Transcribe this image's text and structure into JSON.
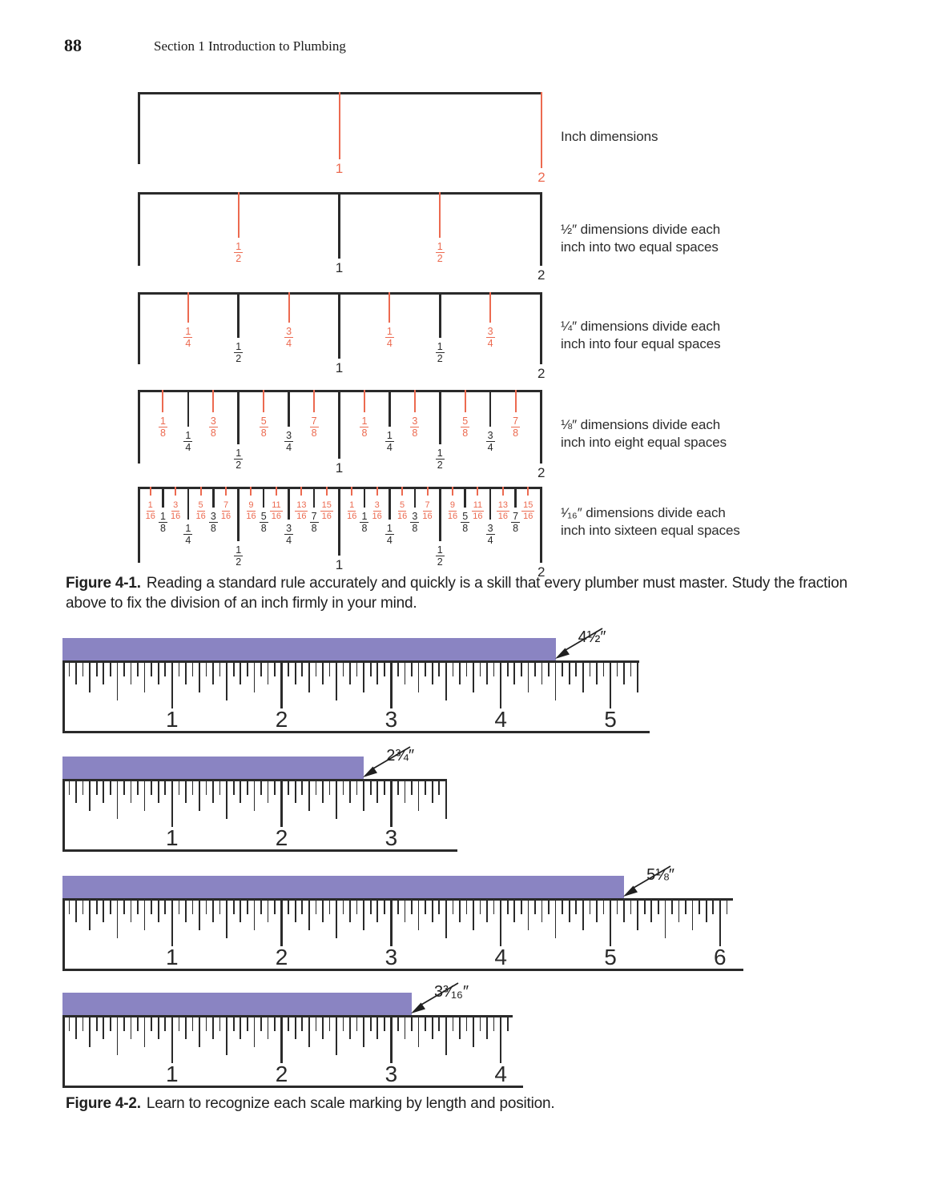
{
  "page": {
    "number": "88",
    "header": "Section 1   Introduction to Plumbing"
  },
  "colors": {
    "highlight_red": "#ec6a50",
    "ink": "#2a2a2a",
    "bar_purple": "#8a84c2"
  },
  "figure1": {
    "caption_label": "Figure  4-1.",
    "caption_text": "Reading a standard rule accurately and quickly is a skill that every plumber must master. Study the fraction above to fix the division of an inch firmly in your mind.",
    "diagrams": [
      {
        "name": "inch-dimensions",
        "note": "Inch dimensions",
        "marks": [
          {
            "p": 0,
            "lv": "edge",
            "c": "k"
          },
          {
            "p": 1,
            "lv": "one",
            "c": "r",
            "t": "1"
          },
          {
            "p": 2,
            "lv": "two",
            "c": "r",
            "t": "2"
          }
        ]
      },
      {
        "name": "half-inch-dimensions",
        "note": "½″ dimensions divide each\ninch into two equal spaces",
        "marks": [
          {
            "p": 0,
            "lv": "edge",
            "c": "k"
          },
          {
            "p": 0.5,
            "lv": "h",
            "c": "r",
            "t": "1/2"
          },
          {
            "p": 1,
            "lv": "one",
            "c": "k",
            "t": "1"
          },
          {
            "p": 1.5,
            "lv": "h",
            "c": "r",
            "t": "1/2"
          },
          {
            "p": 2,
            "lv": "two",
            "c": "k",
            "t": "2"
          }
        ]
      },
      {
        "name": "quarter-inch-dimensions",
        "note": "¼″ dimensions divide each\ninch into four equal spaces",
        "marks": [
          {
            "p": 0,
            "lv": "edge",
            "c": "k"
          },
          {
            "p": 0.25,
            "lv": "q",
            "c": "r",
            "t": "1/4"
          },
          {
            "p": 0.5,
            "lv": "h",
            "c": "k",
            "t": "1/2"
          },
          {
            "p": 0.75,
            "lv": "q",
            "c": "r",
            "t": "3/4"
          },
          {
            "p": 1,
            "lv": "one",
            "c": "k",
            "t": "1"
          },
          {
            "p": 1.25,
            "lv": "q",
            "c": "r",
            "t": "1/4"
          },
          {
            "p": 1.5,
            "lv": "h",
            "c": "k",
            "t": "1/2"
          },
          {
            "p": 1.75,
            "lv": "q",
            "c": "r",
            "t": "3/4"
          },
          {
            "p": 2,
            "lv": "two",
            "c": "k",
            "t": "2"
          }
        ]
      },
      {
        "name": "eighth-inch-dimensions",
        "note": "⅛″ dimensions divide each\ninch into eight equal spaces",
        "marks": [
          {
            "p": 0,
            "lv": "edge",
            "c": "k"
          },
          {
            "p": 0.125,
            "lv": "e",
            "c": "r",
            "t": "1/8"
          },
          {
            "p": 0.25,
            "lv": "q",
            "c": "k",
            "t": "1/4"
          },
          {
            "p": 0.375,
            "lv": "e",
            "c": "r",
            "t": "3/8"
          },
          {
            "p": 0.5,
            "lv": "h",
            "c": "k",
            "t": "1/2"
          },
          {
            "p": 0.625,
            "lv": "e",
            "c": "r",
            "t": "5/8"
          },
          {
            "p": 0.75,
            "lv": "q",
            "c": "k",
            "t": "3/4"
          },
          {
            "p": 0.875,
            "lv": "e",
            "c": "r",
            "t": "7/8"
          },
          {
            "p": 1,
            "lv": "one",
            "c": "k",
            "t": "1"
          },
          {
            "p": 1.125,
            "lv": "e",
            "c": "r",
            "t": "1/8"
          },
          {
            "p": 1.25,
            "lv": "q",
            "c": "k",
            "t": "1/4"
          },
          {
            "p": 1.375,
            "lv": "e",
            "c": "r",
            "t": "3/8"
          },
          {
            "p": 1.5,
            "lv": "h",
            "c": "k",
            "t": "1/2"
          },
          {
            "p": 1.625,
            "lv": "e",
            "c": "r",
            "t": "5/8"
          },
          {
            "p": 1.75,
            "lv": "q",
            "c": "k",
            "t": "3/4"
          },
          {
            "p": 1.875,
            "lv": "e",
            "c": "r",
            "t": "7/8"
          },
          {
            "p": 2,
            "lv": "two",
            "c": "k",
            "t": "2"
          }
        ]
      },
      {
        "name": "sixteenth-inch-dimensions",
        "note": "¹⁄₁₆″ dimensions divide each\ninch into sixteen equal spaces",
        "marks": [
          {
            "p": 0,
            "lv": "edge",
            "c": "k"
          },
          {
            "p": 0.0625,
            "lv": "s",
            "c": "r",
            "t": "1/16"
          },
          {
            "p": 0.125,
            "lv": "e",
            "c": "k",
            "t": "1/8"
          },
          {
            "p": 0.1875,
            "lv": "s",
            "c": "r",
            "t": "3/16"
          },
          {
            "p": 0.25,
            "lv": "q",
            "c": "k",
            "t": "1/4"
          },
          {
            "p": 0.3125,
            "lv": "s",
            "c": "r",
            "t": "5/16"
          },
          {
            "p": 0.375,
            "lv": "e",
            "c": "k",
            "t": "3/8"
          },
          {
            "p": 0.4375,
            "lv": "s",
            "c": "r",
            "t": "7/16"
          },
          {
            "p": 0.5,
            "lv": "h",
            "c": "k",
            "t": "1/2"
          },
          {
            "p": 0.5625,
            "lv": "s",
            "c": "r",
            "t": "9/16"
          },
          {
            "p": 0.625,
            "lv": "e",
            "c": "k",
            "t": "5/8"
          },
          {
            "p": 0.6875,
            "lv": "s",
            "c": "r",
            "t": "11/16"
          },
          {
            "p": 0.75,
            "lv": "q",
            "c": "k",
            "t": "3/4"
          },
          {
            "p": 0.8125,
            "lv": "s",
            "c": "r",
            "t": "13/16"
          },
          {
            "p": 0.875,
            "lv": "e",
            "c": "k",
            "t": "7/8"
          },
          {
            "p": 0.9375,
            "lv": "s",
            "c": "r",
            "t": "15/16"
          },
          {
            "p": 1,
            "lv": "one",
            "c": "k",
            "t": "1"
          },
          {
            "p": 1.0625,
            "lv": "s",
            "c": "r",
            "t": "1/16"
          },
          {
            "p": 1.125,
            "lv": "e",
            "c": "k",
            "t": "1/8"
          },
          {
            "p": 1.1875,
            "lv": "s",
            "c": "r",
            "t": "3/16"
          },
          {
            "p": 1.25,
            "lv": "q",
            "c": "k",
            "t": "1/4"
          },
          {
            "p": 1.3125,
            "lv": "s",
            "c": "r",
            "t": "5/16"
          },
          {
            "p": 1.375,
            "lv": "e",
            "c": "k",
            "t": "3/8"
          },
          {
            "p": 1.4375,
            "lv": "s",
            "c": "r",
            "t": "7/16"
          },
          {
            "p": 1.5,
            "lv": "h",
            "c": "k",
            "t": "1/2"
          },
          {
            "p": 1.5625,
            "lv": "s",
            "c": "r",
            "t": "9/16"
          },
          {
            "p": 1.625,
            "lv": "e",
            "c": "k",
            "t": "5/8"
          },
          {
            "p": 1.6875,
            "lv": "s",
            "c": "r",
            "t": "11/16"
          },
          {
            "p": 1.75,
            "lv": "q",
            "c": "k",
            "t": "3/4"
          },
          {
            "p": 1.8125,
            "lv": "s",
            "c": "r",
            "t": "13/16"
          },
          {
            "p": 1.875,
            "lv": "e",
            "c": "k",
            "t": "7/8"
          },
          {
            "p": 1.9375,
            "lv": "s",
            "c": "r",
            "t": "15/16"
          },
          {
            "p": 2,
            "lv": "two",
            "c": "k",
            "t": "2"
          }
        ]
      }
    ]
  },
  "figure2": {
    "caption_label": "Figure  4-2.",
    "caption_text": "Learn to recognize each scale marking by length and position.",
    "rulers": [
      {
        "numbers": [
          1,
          2,
          3,
          4,
          5
        ],
        "measurement": {
          "label": "4½″",
          "value_in": 4.5
        }
      },
      {
        "numbers": [
          1,
          2,
          3
        ],
        "measurement": {
          "label": "2¾″",
          "value_in": 2.75
        }
      },
      {
        "numbers": [
          1,
          2,
          3,
          4,
          5,
          6
        ],
        "measurement": {
          "label": "5⅛″",
          "value_in": 5.125
        }
      },
      {
        "numbers": [
          1,
          2,
          3,
          4
        ],
        "measurement": {
          "label": "3³⁄₁₆″",
          "value_in": 3.1875
        }
      }
    ]
  }
}
